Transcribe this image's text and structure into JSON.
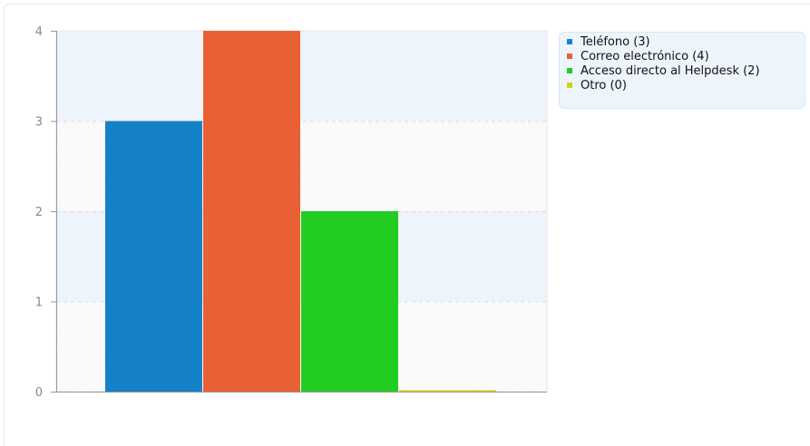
{
  "chart_data": {
    "type": "bar",
    "categories": [
      "Teléfono",
      "Correo electrónico",
      "Acceso directo al Helpdesk",
      "Otro"
    ],
    "values": [
      3,
      4,
      2,
      0
    ],
    "colors": [
      "#1582c8",
      "#e96034",
      "#22cd22",
      "#d2d21a"
    ],
    "legend": [
      {
        "label": "Teléfono (3)",
        "color": "#1582c8"
      },
      {
        "label": "Correo electrónico (4)",
        "color": "#e96034"
      },
      {
        "label": "Acceso directo al Helpdesk (2)",
        "color": "#22cd22"
      },
      {
        "label": "Otro (0)",
        "color": "#d2d21a"
      }
    ],
    "yticks": [
      "0",
      "1",
      "2",
      "3",
      "4"
    ],
    "ylim": [
      0,
      4
    ],
    "grid": true,
    "legend_position": "top-right",
    "title": "",
    "xlabel": "",
    "ylabel": ""
  }
}
